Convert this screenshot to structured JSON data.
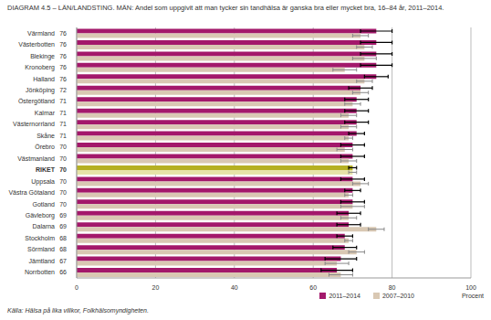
{
  "chart_data": {
    "type": "bar",
    "orientation": "horizontal",
    "title": "DIAGRAM 4.5 – LÄN/LANDSTING. MÄN: Andel som uppgivit att man tycker sin tandhälsa är ganska bra eller mycket bra, 16–84 år, 2011–2014.",
    "source": "Källa: Hälsa på lika villkor, Folkhälsomyndigheten.",
    "xlabel": "Procent",
    "categories": [
      "Värmland",
      "Västerbotten",
      "Blekinge",
      "Kronoberg",
      "Halland",
      "Jönköping",
      "Östergötland",
      "Kalmar",
      "Västernorrland",
      "Skåne",
      "Örebro",
      "Västmanland",
      "RIKET",
      "Uppsala",
      "Västra Götaland",
      "Gotland",
      "Gävleborg",
      "Dalarna",
      "Stockholm",
      "Sörmland",
      "Jämtland",
      "Norrbotten"
    ],
    "series": [
      {
        "name": "2011–2014",
        "color": "#a3186b",
        "colors": [
          "#a3186b",
          "#a3186b",
          "#a3186b",
          "#a3186b",
          "#a3186b",
          "#a3186b",
          "#a3186b",
          "#a3186b",
          "#a3186b",
          "#a3186b",
          "#a3186b",
          "#a3186b",
          "#b5b023",
          "#a3186b",
          "#a3186b",
          "#a3186b",
          "#a3186b",
          "#a3186b",
          "#a3186b",
          "#a3186b",
          "#a3186b",
          "#a3186b"
        ],
        "values": [
          76,
          76,
          76,
          76,
          76,
          72,
          71,
          71,
          71,
          71,
          70,
          70,
          70,
          70,
          70,
          70,
          69,
          69,
          68,
          68,
          67,
          66
        ],
        "errors": [
          4,
          4,
          4,
          4,
          3,
          3,
          3,
          3,
          3,
          2,
          3,
          3,
          1,
          3,
          2,
          3,
          3,
          3,
          2,
          3,
          4,
          4
        ]
      },
      {
        "name": "2007–2010",
        "color": "#d9c8b3",
        "colors": [
          "#d9c8b3",
          "#d9c8b3",
          "#d9c8b3",
          "#d9c8b3",
          "#d9c8b3",
          "#d9c8b3",
          "#d9c8b3",
          "#d9c8b3",
          "#d9c8b3",
          "#d9c8b3",
          "#d9c8b3",
          "#d9c8b3",
          "#e6e3a8",
          "#d9c8b3",
          "#d9c8b3",
          "#d9c8b3",
          "#d9c8b3",
          "#d9c8b3",
          "#d9c8b3",
          "#d9c8b3",
          "#d9c8b3",
          "#d9c8b3"
        ],
        "values": [
          72,
          73,
          73,
          68,
          73,
          72,
          70,
          69,
          69,
          69,
          68,
          69,
          70,
          72,
          69,
          70,
          69,
          76,
          69,
          71,
          66,
          67
        ],
        "errors": [
          2,
          2,
          3,
          3,
          2,
          2,
          2,
          2,
          2,
          1,
          2,
          2,
          1,
          2,
          1,
          3,
          2,
          2,
          1,
          2,
          3,
          3
        ]
      }
    ],
    "xlim": [
      0,
      100
    ],
    "xticks": [
      0,
      20,
      40,
      60,
      80,
      100
    ],
    "grid": true,
    "legend": "bottom-right"
  }
}
